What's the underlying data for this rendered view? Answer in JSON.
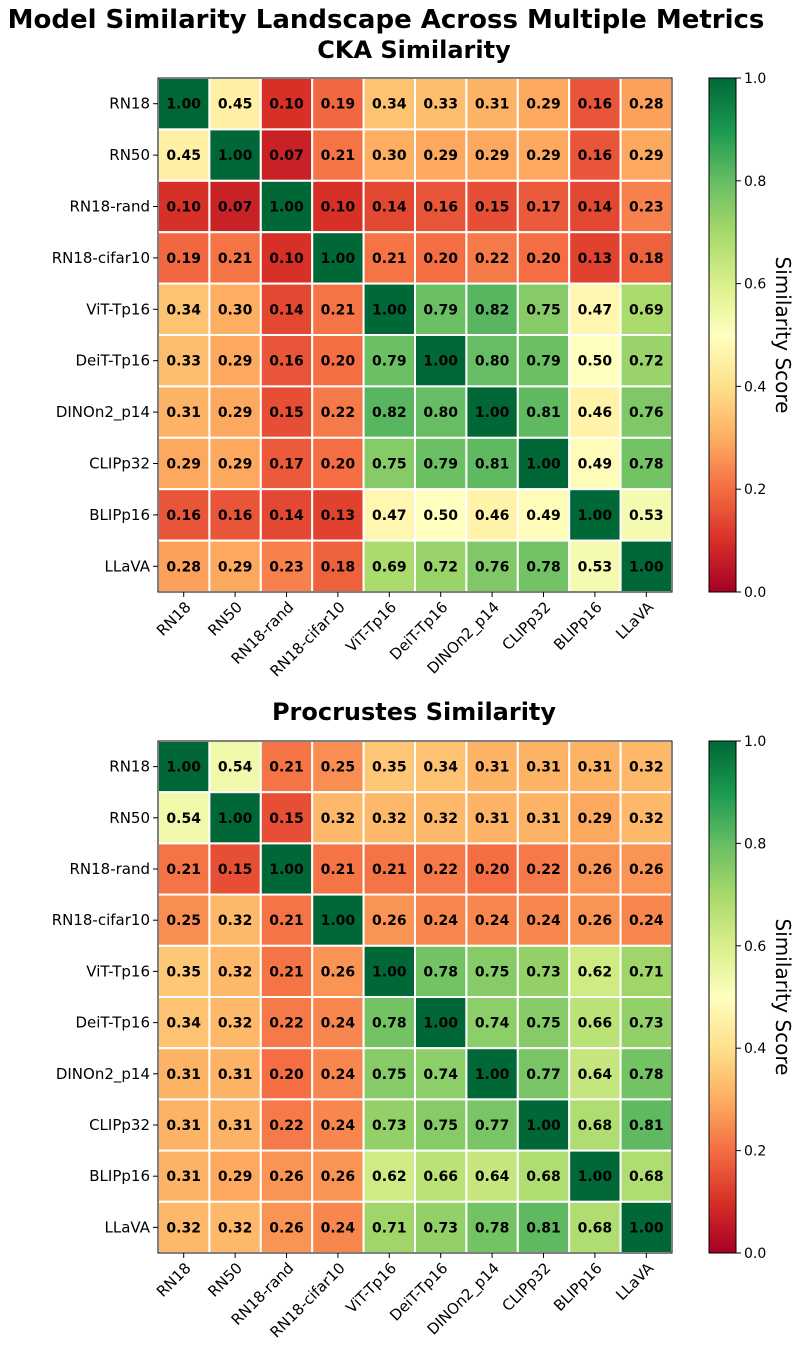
{
  "figure": {
    "suptitle": "Model Similarity Landscape Across Multiple Metrics",
    "colormap": [
      "#a50026",
      "#d73027",
      "#f46d43",
      "#fdae61",
      "#fee08b",
      "#ffffbf",
      "#d9ef8b",
      "#a6d96a",
      "#66bd63",
      "#1a9850",
      "#006837"
    ]
  },
  "chart_data": [
    {
      "type": "heatmap",
      "title": "CKA Similarity",
      "rows": [
        "RN18",
        "RN50",
        "RN18-rand",
        "RN18-cifar10",
        "ViT-Tp16",
        "DeiT-Tp16",
        "DINOn2_p14",
        "CLIPp32",
        "BLIPp16",
        "LLaVA"
      ],
      "cols": [
        "RN18",
        "RN50",
        "RN18-rand",
        "RN18-cifar10",
        "ViT-Tp16",
        "DeiT-Tp16",
        "DINOn2_p14",
        "CLIPp32",
        "BLIPp16",
        "LLaVA"
      ],
      "values": [
        [
          1.0,
          0.45,
          0.1,
          0.19,
          0.34,
          0.33,
          0.31,
          0.29,
          0.16,
          0.28
        ],
        [
          0.45,
          1.0,
          0.07,
          0.21,
          0.3,
          0.29,
          0.29,
          0.29,
          0.16,
          0.29
        ],
        [
          0.1,
          0.07,
          1.0,
          0.1,
          0.14,
          0.16,
          0.15,
          0.17,
          0.14,
          0.23
        ],
        [
          0.19,
          0.21,
          0.1,
          1.0,
          0.21,
          0.2,
          0.22,
          0.2,
          0.13,
          0.18
        ],
        [
          0.34,
          0.3,
          0.14,
          0.21,
          1.0,
          0.79,
          0.82,
          0.75,
          0.47,
          0.69
        ],
        [
          0.33,
          0.29,
          0.16,
          0.2,
          0.79,
          1.0,
          0.8,
          0.79,
          0.5,
          0.72
        ],
        [
          0.31,
          0.29,
          0.15,
          0.22,
          0.82,
          0.8,
          1.0,
          0.81,
          0.46,
          0.76
        ],
        [
          0.29,
          0.29,
          0.17,
          0.2,
          0.75,
          0.79,
          0.81,
          1.0,
          0.49,
          0.78
        ],
        [
          0.16,
          0.16,
          0.14,
          0.13,
          0.47,
          0.5,
          0.46,
          0.49,
          1.0,
          0.53
        ],
        [
          0.28,
          0.29,
          0.23,
          0.18,
          0.69,
          0.72,
          0.76,
          0.78,
          0.53,
          1.0
        ]
      ],
      "vmin": 0.0,
      "vmax": 1.0,
      "colorbar_label": "Similarity Score",
      "colorbar_ticks": [
        "0.0",
        "0.2",
        "0.4",
        "0.6",
        "0.8",
        "1.0"
      ]
    },
    {
      "type": "heatmap",
      "title": "Procrustes Similarity",
      "rows": [
        "RN18",
        "RN50",
        "RN18-rand",
        "RN18-cifar10",
        "ViT-Tp16",
        "DeiT-Tp16",
        "DINOn2_p14",
        "CLIPp32",
        "BLIPp16",
        "LLaVA"
      ],
      "cols": [
        "RN18",
        "RN50",
        "RN18-rand",
        "RN18-cifar10",
        "ViT-Tp16",
        "DeiT-Tp16",
        "DINOn2_p14",
        "CLIPp32",
        "BLIPp16",
        "LLaVA"
      ],
      "values": [
        [
          1.0,
          0.54,
          0.21,
          0.25,
          0.35,
          0.34,
          0.31,
          0.31,
          0.31,
          0.32
        ],
        [
          0.54,
          1.0,
          0.15,
          0.32,
          0.32,
          0.32,
          0.31,
          0.31,
          0.29,
          0.32
        ],
        [
          0.21,
          0.15,
          1.0,
          0.21,
          0.21,
          0.22,
          0.2,
          0.22,
          0.26,
          0.26
        ],
        [
          0.25,
          0.32,
          0.21,
          1.0,
          0.26,
          0.24,
          0.24,
          0.24,
          0.26,
          0.24
        ],
        [
          0.35,
          0.32,
          0.21,
          0.26,
          1.0,
          0.78,
          0.75,
          0.73,
          0.62,
          0.71
        ],
        [
          0.34,
          0.32,
          0.22,
          0.24,
          0.78,
          1.0,
          0.74,
          0.75,
          0.66,
          0.73
        ],
        [
          0.31,
          0.31,
          0.2,
          0.24,
          0.75,
          0.74,
          1.0,
          0.77,
          0.64,
          0.78
        ],
        [
          0.31,
          0.31,
          0.22,
          0.24,
          0.73,
          0.75,
          0.77,
          1.0,
          0.68,
          0.81
        ],
        [
          0.31,
          0.29,
          0.26,
          0.26,
          0.62,
          0.66,
          0.64,
          0.68,
          1.0,
          0.68
        ],
        [
          0.32,
          0.32,
          0.26,
          0.24,
          0.71,
          0.73,
          0.78,
          0.81,
          0.68,
          1.0
        ]
      ],
      "vmin": 0.0,
      "vmax": 1.0,
      "colorbar_label": "Similarity Score",
      "colorbar_ticks": [
        "0.0",
        "0.2",
        "0.4",
        "0.6",
        "0.8",
        "1.0"
      ]
    }
  ]
}
